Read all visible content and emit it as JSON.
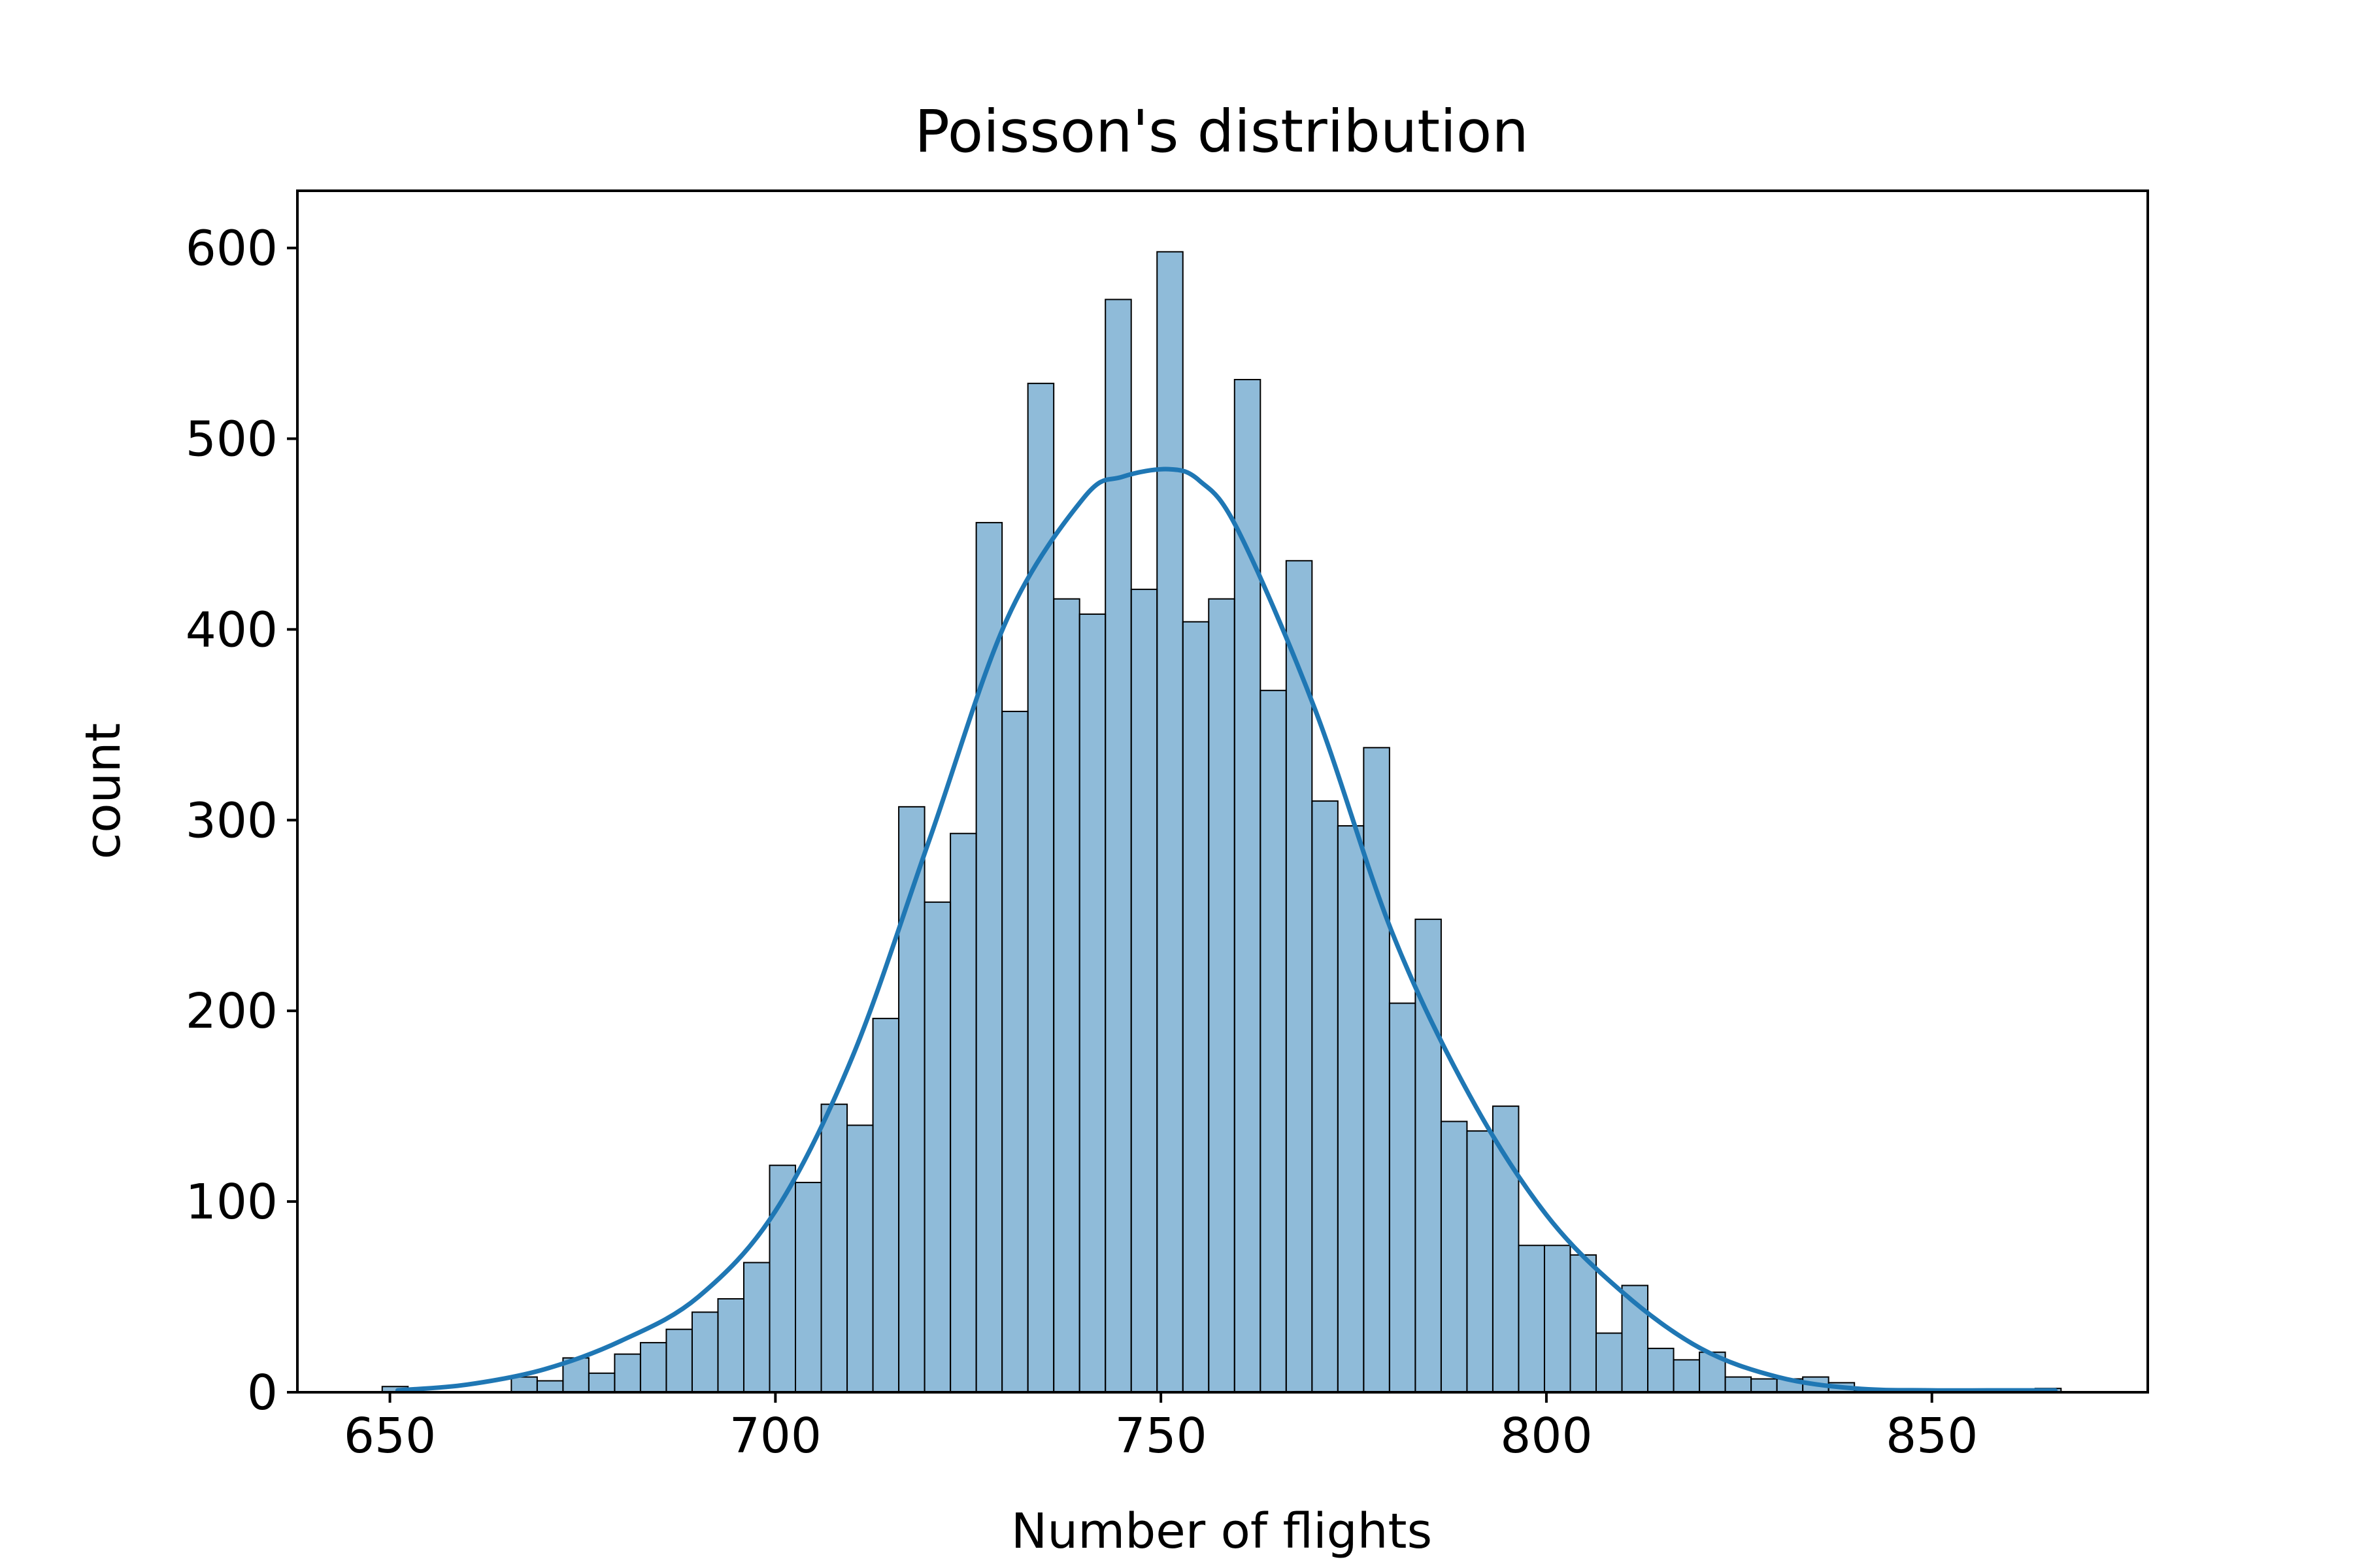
{
  "chart_data": {
    "type": "bar",
    "title": "Poisson's distribution",
    "xlabel": "Number of flights",
    "ylabel": "count",
    "xlim": [
      638,
      878
    ],
    "ylim": [
      0,
      630
    ],
    "xticks": [
      650,
      700,
      750,
      800,
      850
    ],
    "yticks": [
      0,
      100,
      200,
      300,
      400,
      500,
      600
    ],
    "grid": false,
    "bar_color": "#1f77b4",
    "bar_alpha": 0.5,
    "bar_edge_color": "#000000",
    "kde_color": "#1f77b4",
    "bins": {
      "start": 649,
      "width": 3.35,
      "counts": [
        3,
        0,
        0,
        0,
        0,
        8,
        6,
        18,
        10,
        20,
        26,
        33,
        42,
        49,
        68,
        119,
        110,
        151,
        140,
        196,
        307,
        257,
        293,
        456,
        357,
        529,
        416,
        408,
        573,
        421,
        598,
        404,
        416,
        531,
        368,
        436,
        310,
        297,
        338,
        204,
        248,
        142,
        137,
        150,
        77,
        77,
        72,
        31,
        56,
        23,
        17,
        21,
        8,
        7,
        7,
        8,
        5,
        1,
        1,
        1,
        1,
        1,
        1,
        1,
        2
      ]
    },
    "kde_curve": {
      "x": [
        651,
        660,
        670,
        680,
        690,
        700,
        710,
        720,
        730,
        740,
        745,
        751,
        755,
        760,
        770,
        780,
        790,
        800,
        810,
        820,
        830,
        840,
        850,
        860,
        866
      ],
      "y": [
        1,
        4,
        12,
        27,
        50,
        95,
        176,
        290,
        405,
        469,
        480,
        484,
        478,
        452,
        358,
        241,
        156,
        93,
        52,
        23,
        8,
        2,
        1,
        1,
        1
      ]
    }
  }
}
